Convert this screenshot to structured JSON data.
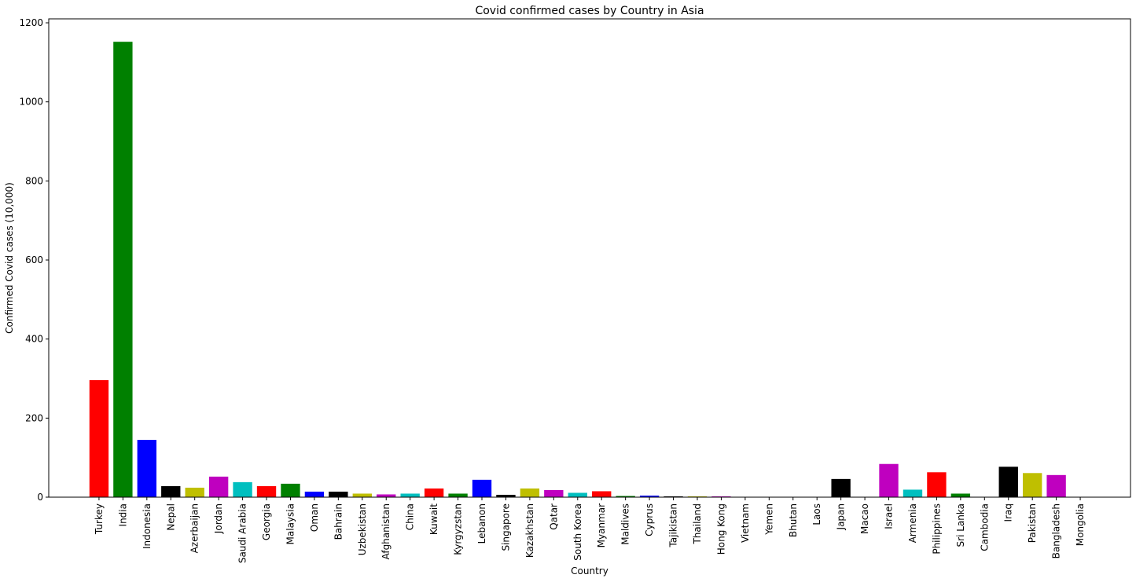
{
  "chart_data": {
    "type": "bar",
    "title": "Covid confirmed cases by Country in Asia",
    "xlabel": "Country",
    "ylabel": "Confirmed Covid cases (10,000)",
    "ylim": [
      0,
      1210
    ],
    "yticks": [
      0,
      200,
      400,
      600,
      800,
      1000,
      1200
    ],
    "grid": false,
    "colors": [
      "#ff0000",
      "#008000",
      "#0000ff",
      "#000000",
      "#bfbf00",
      "#bf00bf",
      "#00bfbf"
    ],
    "categories": [
      "Turkey",
      "India",
      "Indonesia",
      "Nepal",
      "Azerbaijan",
      "Jordan",
      "Saudi Arabia",
      "Georgia",
      "Malaysia",
      "Oman",
      "Bahrain",
      "Uzbekistan",
      "Afghanistan",
      "China",
      "Kuwait",
      "Kyrgyzstan",
      "Lebanon",
      "Singapore",
      "Kazakhstan",
      "Qatar",
      "South Korea",
      "Myanmar",
      "Maldives",
      "Cyprus",
      "Tajikistan",
      "Thailand",
      "Hong Kong",
      "Vietnam",
      "Yemen",
      "Bhutan",
      "Laos",
      "Japan",
      "Macao",
      "Israel",
      "Armenia",
      "Philippines",
      "Sri Lanka",
      "Cambodia",
      "Iraq",
      "Pakistan",
      "Bangladesh",
      "Mongolia"
    ],
    "values": [
      296,
      1152,
      145,
      28,
      24,
      52,
      38,
      28,
      34,
      14,
      14,
      9,
      7,
      9,
      22,
      9,
      44,
      6,
      22,
      18,
      11,
      15,
      3,
      4,
      2,
      2,
      2,
      0.3,
      0.1,
      0.2,
      0.1,
      46,
      0.01,
      84,
      19,
      63,
      9,
      0.1,
      77,
      61,
      56,
      0.2
    ]
  }
}
